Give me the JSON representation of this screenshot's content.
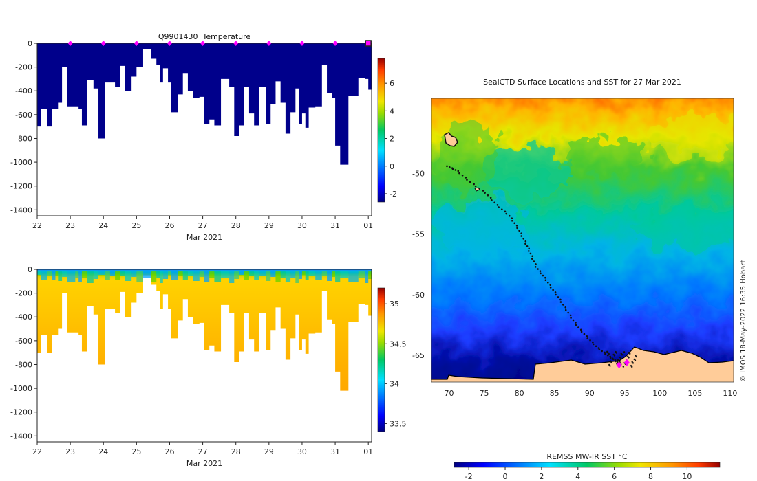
{
  "colors": {
    "temp_fill": "#00008b",
    "land": "#ffcc99",
    "track": "#111111",
    "marker": "#ff00ff"
  },
  "chart_data": [
    {
      "id": "temperature-section",
      "type": "heatmap",
      "title": "Q9901430  Temperature",
      "xlabel": "Mar 2021",
      "ylabel": "",
      "x_ticks": [
        "22",
        "23",
        "24",
        "25",
        "26",
        "27",
        "28",
        "29",
        "30",
        "31",
        "01"
      ],
      "x_tick_values": [
        22,
        23,
        24,
        25,
        26,
        27,
        28,
        29,
        30,
        31,
        32
      ],
      "xlim": [
        22,
        32.1
      ],
      "y_ticks": [
        "0",
        "-200",
        "-400",
        "-600",
        "-800",
        "-1000",
        "-1200",
        "-1400"
      ],
      "y_tick_values": [
        0,
        -200,
        -400,
        -600,
        -800,
        -1000,
        -1200,
        -1400
      ],
      "ylim": [
        -1450,
        0
      ],
      "colorbar": {
        "ticks": [
          "-2",
          "0",
          "2",
          "4",
          "6"
        ],
        "tick_values": [
          -2,
          0,
          2,
          4,
          6
        ],
        "range": [
          -2.6,
          7.8
        ]
      },
      "profile_depths": [
        [
          22.0,
          700
        ],
        [
          22.12,
          550
        ],
        [
          22.3,
          700
        ],
        [
          22.45,
          550
        ],
        [
          22.55,
          550
        ],
        [
          22.65,
          500
        ],
        [
          22.75,
          200
        ],
        [
          22.9,
          530
        ],
        [
          23.15,
          530
        ],
        [
          23.25,
          550
        ],
        [
          23.35,
          690
        ],
        [
          23.5,
          310
        ],
        [
          23.7,
          380
        ],
        [
          23.85,
          800
        ],
        [
          24.05,
          330
        ],
        [
          24.2,
          330
        ],
        [
          24.35,
          370
        ],
        [
          24.5,
          190
        ],
        [
          24.65,
          400
        ],
        [
          24.85,
          280
        ],
        [
          25.0,
          200
        ],
        [
          25.2,
          50
        ],
        [
          25.45,
          130
        ],
        [
          25.6,
          180
        ],
        [
          25.72,
          330
        ],
        [
          25.8,
          210
        ],
        [
          25.95,
          330
        ],
        [
          26.05,
          580
        ],
        [
          26.25,
          430
        ],
        [
          26.4,
          250
        ],
        [
          26.55,
          400
        ],
        [
          26.7,
          460
        ],
        [
          26.9,
          450
        ],
        [
          27.05,
          680
        ],
        [
          27.2,
          640
        ],
        [
          27.35,
          690
        ],
        [
          27.55,
          300
        ],
        [
          27.8,
          370
        ],
        [
          27.95,
          780
        ],
        [
          28.1,
          690
        ],
        [
          28.25,
          370
        ],
        [
          28.4,
          590
        ],
        [
          28.55,
          690
        ],
        [
          28.7,
          370
        ],
        [
          28.9,
          680
        ],
        [
          29.05,
          510
        ],
        [
          29.2,
          320
        ],
        [
          29.35,
          500
        ],
        [
          29.5,
          760
        ],
        [
          29.65,
          580
        ],
        [
          29.8,
          380
        ],
        [
          29.9,
          680
        ],
        [
          30.0,
          590
        ],
        [
          30.1,
          710
        ],
        [
          30.2,
          540
        ],
        [
          30.4,
          530
        ],
        [
          30.6,
          180
        ],
        [
          30.75,
          420
        ],
        [
          30.9,
          460
        ],
        [
          31.0,
          860
        ],
        [
          31.15,
          1020
        ],
        [
          31.4,
          440
        ],
        [
          31.7,
          290
        ],
        [
          31.9,
          300
        ],
        [
          32.0,
          390
        ],
        [
          32.1,
          390
        ]
      ],
      "surface_markers_x": [
        23,
        24,
        25,
        26,
        27,
        28,
        29,
        30,
        31
      ],
      "end_marker_x": 32
    },
    {
      "id": "salinity-section",
      "type": "heatmap",
      "title": "",
      "xlabel": "Mar 2021",
      "x_ticks": [
        "22",
        "23",
        "24",
        "25",
        "26",
        "27",
        "28",
        "29",
        "30",
        "31",
        "01"
      ],
      "x_tick_values": [
        22,
        23,
        24,
        25,
        26,
        27,
        28,
        29,
        30,
        31,
        32
      ],
      "xlim": [
        22,
        32.1
      ],
      "y_ticks": [
        "0",
        "-200",
        "-400",
        "-600",
        "-800",
        "-1000",
        "-1200",
        "-1400"
      ],
      "y_tick_values": [
        0,
        -200,
        -400,
        -600,
        -800,
        -1000,
        -1200,
        -1400
      ],
      "ylim": [
        -1450,
        0
      ],
      "colorbar": {
        "ticks": [
          "33.5",
          "34",
          "34.5",
          "35"
        ],
        "tick_values": [
          33.5,
          34,
          34.5,
          35
        ],
        "range": [
          33.4,
          35.2
        ]
      },
      "surface_salinity": 33.9,
      "deep_salinity": 34.68
    },
    {
      "id": "sst-map",
      "type": "heatmap",
      "title": "SealCTD Surface Locations and SST for 27 Mar 2021",
      "x_ticks": [
        "70",
        "75",
        "80",
        "85",
        "90",
        "95",
        "100",
        "105",
        "110"
      ],
      "x_tick_values": [
        70,
        75,
        80,
        85,
        90,
        95,
        100,
        105,
        110
      ],
      "xlim": [
        67.5,
        110.5
      ],
      "y_ticks": [
        "-50",
        "-55",
        "-60",
        "-65"
      ],
      "y_tick_values": [
        -50,
        -55,
        -60,
        -65
      ],
      "ylim": [
        -67.2,
        -43.8
      ],
      "colorbar": {
        "label": "REMSS MW-IR SST °C",
        "ticks": [
          "-2",
          "0",
          "2",
          "4",
          "6",
          "8",
          "10"
        ],
        "tick_values": [
          -2,
          0,
          2,
          4,
          6,
          8,
          10
        ],
        "range": [
          -2.8,
          11.8
        ]
      },
      "track": [
        [
          69.8,
          -49.4
        ],
        [
          71.2,
          -49.8
        ],
        [
          73.0,
          -50.7
        ],
        [
          75.2,
          -51.6
        ],
        [
          76.8,
          -52.6
        ],
        [
          78.6,
          -53.5
        ],
        [
          79.8,
          -54.5
        ],
        [
          80.8,
          -55.6
        ],
        [
          81.6,
          -56.6
        ],
        [
          82.4,
          -57.7
        ],
        [
          83.6,
          -58.6
        ],
        [
          84.8,
          -59.6
        ],
        [
          86.0,
          -60.6
        ],
        [
          87.2,
          -61.7
        ],
        [
          88.4,
          -62.7
        ],
        [
          89.8,
          -63.6
        ],
        [
          91.2,
          -64.4
        ],
        [
          92.6,
          -65.0
        ],
        [
          93.8,
          -65.5
        ],
        [
          94.6,
          -65.8
        ]
      ],
      "markers": [
        [
          94.2,
          -65.8
        ],
        [
          95.3,
          -65.6
        ]
      ],
      "credit": "© IMOS 18-May-2022 16:35 Hobart"
    }
  ]
}
